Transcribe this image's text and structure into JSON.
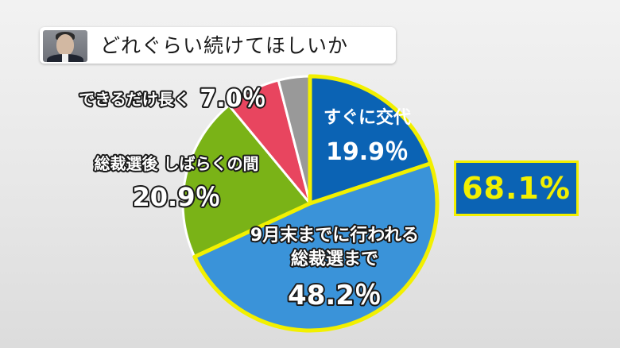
{
  "header": {
    "title": "どれぐらい続けてほしいか"
  },
  "highlight": {
    "value": "68.1%",
    "color": "#0b63b4",
    "text_color": "#f2f000"
  },
  "chart_data": {
    "type": "pie",
    "title": "どれぐらい続けてほしいか",
    "slices": [
      {
        "label": "すぐに交代",
        "value": 19.9,
        "value_label": "19.9％",
        "color": "#0b63b4",
        "highlighted": true
      },
      {
        "label": "9月末までに行われる 総裁選まで",
        "label_lines": [
          "9月末までに行われる",
          "総裁選まで"
        ],
        "value": 48.2,
        "value_label": "48.2％",
        "color": "#3a93d9",
        "highlighted": true
      },
      {
        "label": "総裁選後 しばらくの間",
        "value": 20.9,
        "value_label": "20.9％",
        "color": "#7ab317",
        "highlighted": false
      },
      {
        "label": "できるだけ長く",
        "value": 7.0,
        "value_label": "7.0％",
        "color": "#e8455f",
        "highlighted": false
      },
      {
        "label": "",
        "value": 4.0,
        "value_label": "",
        "color": "#999999",
        "highlighted": false
      }
    ],
    "start_angle_deg": 0,
    "direction": "clockwise",
    "highlight_outline_color": "#f2f000"
  }
}
